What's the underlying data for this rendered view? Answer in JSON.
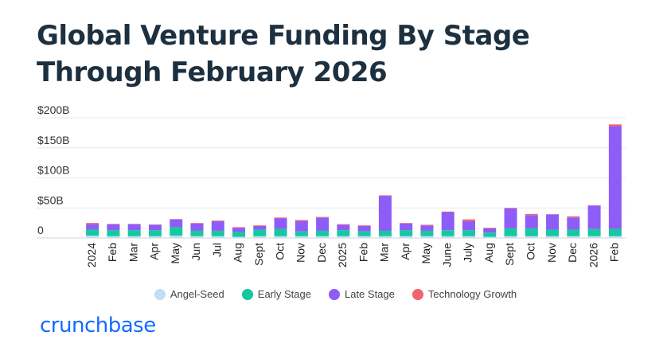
{
  "title": "Global Venture Funding By Stage Through February 2026",
  "logo_text": "crunchbase",
  "colors": {
    "Angel-Seed": "#c6dcf5",
    "Early Stage": "#14c8a0",
    "Late Stage": "#8e5cf7",
    "Technology Growth": "#f2636b"
  },
  "chart_data": {
    "type": "bar",
    "stacked": true,
    "ylim": [
      0,
      200
    ],
    "y_ticks": [
      "0",
      "$50B",
      "$100B",
      "$150B",
      "$200B"
    ],
    "grid": true,
    "legend_position": "bottom",
    "categories": [
      "2024",
      "Feb",
      "Mar",
      "Apr",
      "May",
      "Jun",
      "Jul",
      "Aug",
      "Sept",
      "Oct",
      "Nov",
      "Dec",
      "2025",
      "Feb",
      "Mar",
      "Apr",
      "May",
      "June",
      "July",
      "Aug",
      "Sept",
      "Oct",
      "Nov",
      "Dec",
      "2026",
      "Feb"
    ],
    "series": [
      {
        "name": "Angel-Seed",
        "values": [
          4,
          3,
          3,
          3,
          4,
          3,
          3,
          2,
          3,
          3,
          3,
          3,
          3,
          3,
          3,
          3,
          3,
          3,
          3,
          2,
          3,
          3,
          3,
          3,
          3,
          3
        ]
      },
      {
        "name": "Early Stage",
        "values": [
          10,
          10,
          10,
          10,
          14,
          9,
          9,
          8,
          11,
          12,
          8,
          9,
          10,
          8,
          9,
          10,
          9,
          10,
          10,
          7,
          13,
          13,
          11,
          11,
          12,
          12
        ]
      },
      {
        "name": "Late Stage",
        "values": [
          9,
          10,
          10,
          9,
          13,
          12,
          16,
          7,
          6,
          18,
          17,
          22,
          9,
          9,
          58,
          11,
          9,
          30,
          15,
          7,
          33,
          22,
          25,
          20,
          39,
          171
        ]
      },
      {
        "name": "Technology Growth",
        "values": [
          2,
          0.5,
          0.5,
          0.5,
          0.5,
          1,
          1,
          1,
          1,
          1,
          2,
          1,
          1,
          1,
          1,
          1,
          1,
          1,
          3,
          1,
          1,
          2,
          0.5,
          2,
          0.5,
          3
        ]
      }
    ]
  }
}
